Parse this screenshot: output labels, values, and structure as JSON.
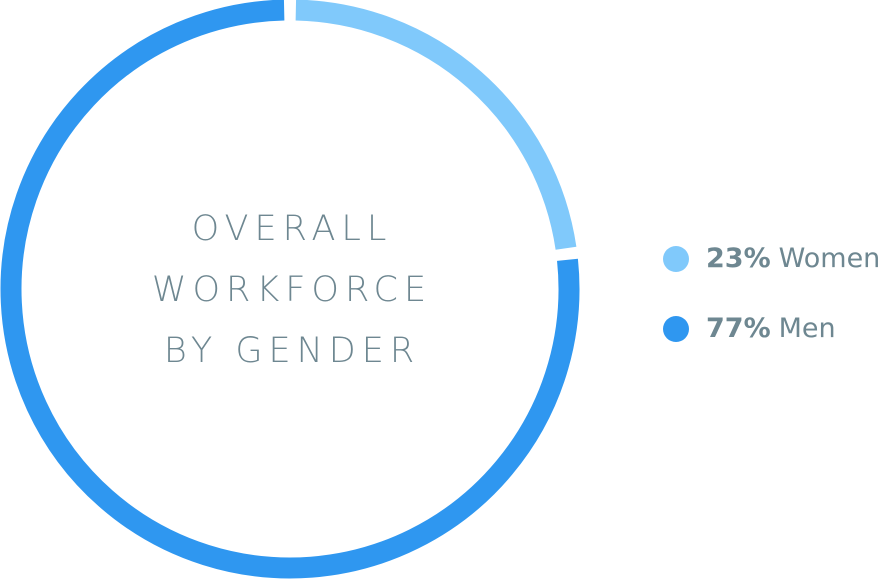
{
  "chart_data": {
    "type": "donut",
    "title": [
      "OVERALL",
      "WORKFORCE",
      "BY GENDER"
    ],
    "categories": [
      "Women",
      "Men"
    ],
    "values": [
      23,
      77
    ],
    "value_labels": [
      "23%",
      "77%"
    ],
    "colors": [
      "#80c9fb",
      "#2f97f0"
    ]
  }
}
